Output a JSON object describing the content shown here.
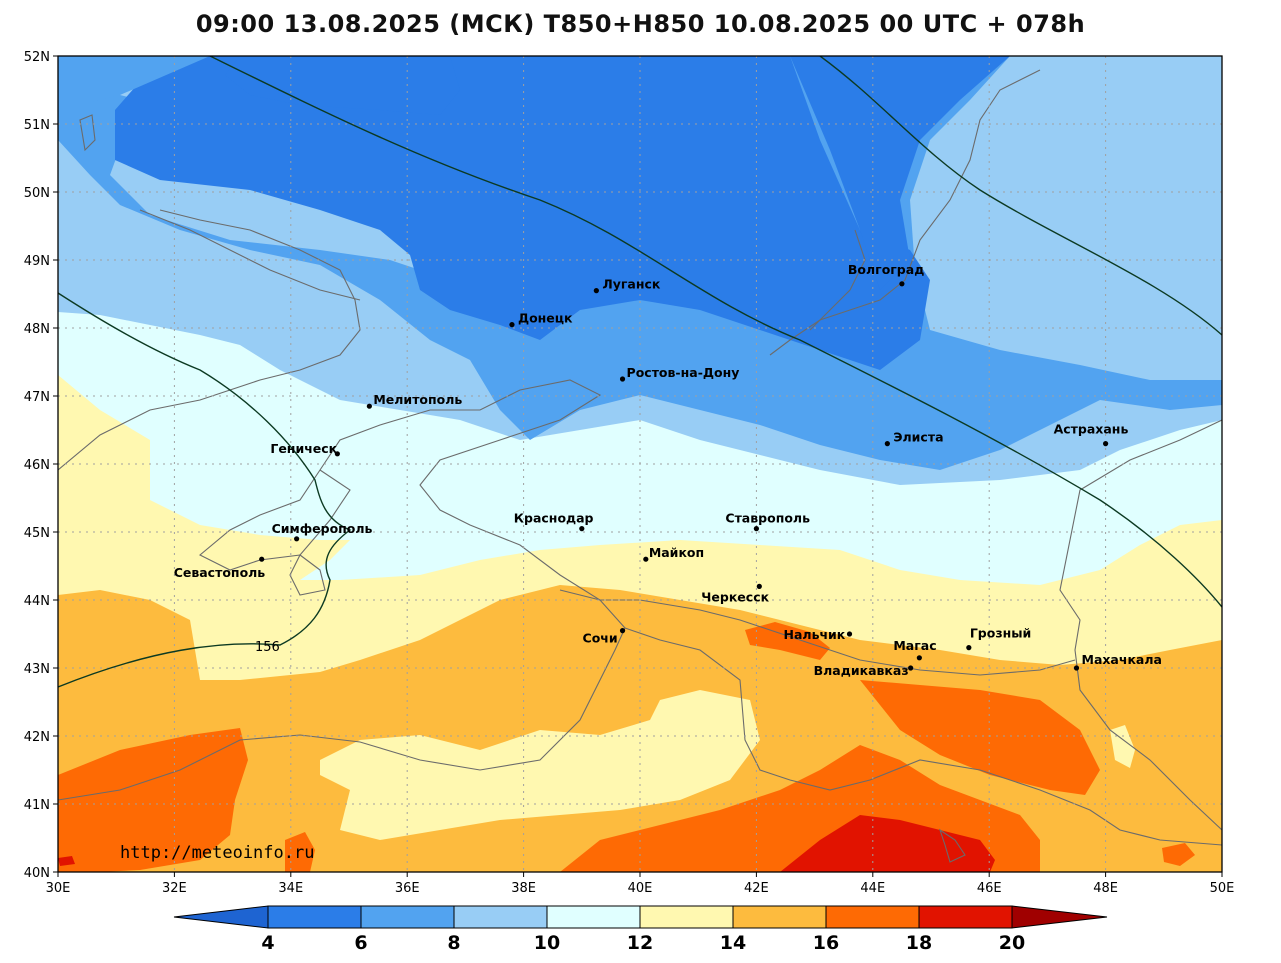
{
  "title": "09:00 13.08.2025 (МСК) T850+H850 10.08.2025 00 UTC + 078h",
  "credit": "http://meteoinfo.ru",
  "contour_label": "156",
  "axes": {
    "lat_labels": [
      "52N",
      "51N",
      "50N",
      "49N",
      "48N",
      "47N",
      "46N",
      "45N",
      "44N",
      "43N",
      "42N",
      "41N",
      "40N"
    ],
    "lon_labels": [
      "30E",
      "32E",
      "34E",
      "36E",
      "38E",
      "40E",
      "42E",
      "44E",
      "46E",
      "48E",
      "50E"
    ]
  },
  "colorbar": {
    "ticks": [
      "4",
      "6",
      "8",
      "10",
      "12",
      "14",
      "16",
      "18",
      "20"
    ],
    "colors": [
      "#1e64d2",
      "#2b7de8",
      "#52a3f0",
      "#98cdf5",
      "#e0ffff",
      "#fff8b0",
      "#fdbb3e",
      "#fe6a04",
      "#e11300",
      "#a00000"
    ]
  },
  "fill_colors": {
    "6-8": "#2b7de8",
    "8-10": "#52a3f0",
    "10-12": "#98cdf5",
    "12-14": "#e0ffff",
    "14-16": "#fff8b0",
    "16-18": "#fdbb3e",
    "18-20": "#fe6a04",
    "20+": "#e11300"
  },
  "cities": [
    {
      "name": "Волгоград",
      "label": "Волгоград"
    },
    {
      "name": "Луганск",
      "label": "Луганск"
    },
    {
      "name": "Донецк",
      "label": "Донецк"
    },
    {
      "name": "Ростов-на-Дону",
      "label": "Ростов-на-Дону"
    },
    {
      "name": "Мелитополь",
      "label": "Мелитополь"
    },
    {
      "name": "Геническ",
      "label": "Геническ"
    },
    {
      "name": "Элиста",
      "label": "Элиста"
    },
    {
      "name": "Астрахань",
      "label": "Астрахань"
    },
    {
      "name": "Симферополь",
      "label": "Симферополь"
    },
    {
      "name": "Севастополь",
      "label": "Севастополь"
    },
    {
      "name": "Краснодар",
      "label": "Краснодар"
    },
    {
      "name": "Ставрополь",
      "label": "Ставрополь"
    },
    {
      "name": "Майкоп",
      "label": "Майкоп"
    },
    {
      "name": "Черкесск",
      "label": "Черкесск"
    },
    {
      "name": "Сочи",
      "label": "Сочи"
    },
    {
      "name": "Нальчик",
      "label": "Нальчик"
    },
    {
      "name": "Магас",
      "label": "Магас"
    },
    {
      "name": "Грозный",
      "label": "Грозный"
    },
    {
      "name": "Владикавказ",
      "label": "Владикавказ"
    },
    {
      "name": "Махачкала",
      "label": "Махачкала"
    }
  ]
}
